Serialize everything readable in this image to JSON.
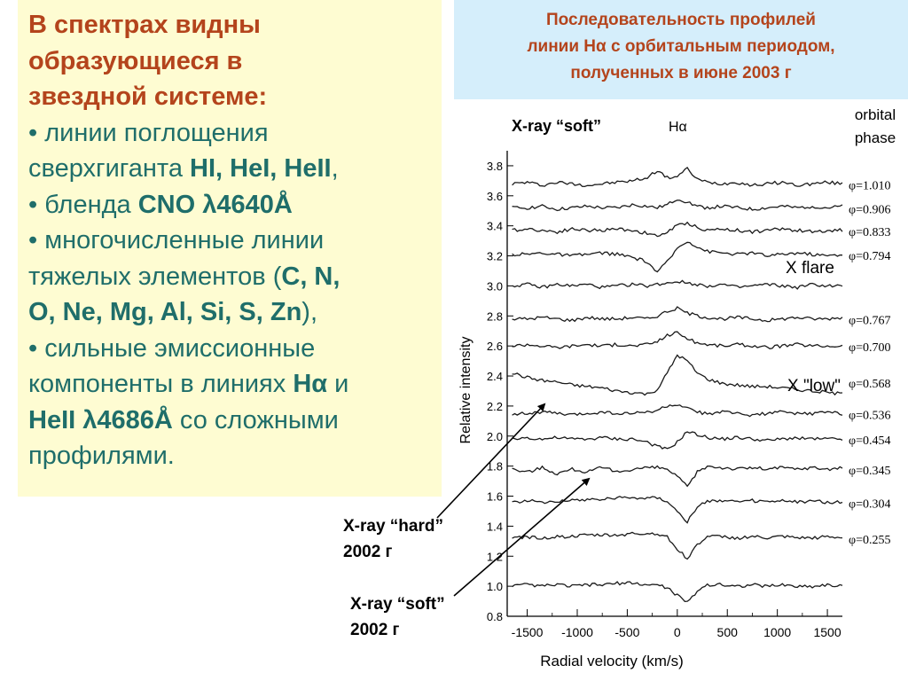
{
  "left_panel": {
    "heading_lines": [
      "В спектрах видны",
      "образующиеся в",
      "звездной системе:"
    ],
    "b1_lines": [
      "• линии поглощения",
      "сверхгиганта "
    ],
    "b1_bold": "HI, HeI, HeII",
    "b1_end": ",",
    "b2_pre": "• бленда ",
    "b2_bold": "CNO λ4640Å",
    "b3_lines": [
      "• многочисленные линии",
      "тяжелых элементов ("
    ],
    "b3_bold1": "C, N,",
    "b3_bold2": "O, Ne, Mg, Al, Si, S, Zn",
    "b3_end": "),",
    "b4_lines": [
      "• сильные эмиссионные",
      "компоненты в линиях "
    ],
    "b4_bold1": "Hα",
    "b4_mid": " и",
    "b4_bold2": "HeII λ4686Å",
    "b4_tail": " со сложными",
    "b4_last": "профилями.",
    "colors": {
      "background": "#fefcd2",
      "heading": "#b4441c",
      "body": "#1f6e6a"
    }
  },
  "title_box": {
    "lines": [
      "Последовательность профилей",
      "линии Hα с орбитальным периодом,",
      "полученных в июне 2003 г"
    ],
    "colors": {
      "background": "#d5eefb",
      "text": "#b4441c"
    }
  },
  "figure": {
    "label_xray_soft_top": "X-ray “soft”",
    "label_halpha": "Hα",
    "orbital_phase_lines": [
      "orbital",
      "phase"
    ],
    "x_flare": "X flare",
    "x_low": "X \"low\"",
    "xray_hard_lines": [
      "X-ray “hard”",
      "2002 г"
    ],
    "xray_soft_lines": [
      "X-ray “soft”",
      "2002 г"
    ]
  },
  "chart_data": {
    "type": "line",
    "title": "",
    "xlabel": "Radial velocity (km/s)",
    "ylabel": "Relative intensity",
    "xlim": [
      -1700,
      1650
    ],
    "ylim": [
      0.8,
      3.9
    ],
    "x_ticks": [
      -1500,
      -1000,
      -500,
      0,
      500,
      1000,
      1500
    ],
    "x_tick_labels": [
      "-1500",
      "-1000",
      "-500",
      "0",
      "500",
      "1000",
      "1500"
    ],
    "y_ticks": [
      0.8,
      1.0,
      1.2,
      1.4,
      1.6,
      1.8,
      2.0,
      2.2,
      2.4,
      2.6,
      2.8,
      3.0,
      3.2,
      3.4,
      3.6,
      3.8
    ],
    "y_tick_labels": [
      "0.8",
      "1.0",
      "1.2",
      "1.4",
      "1.6",
      "1.8",
      "2.0",
      "2.2",
      "2.4",
      "2.6",
      "2.8",
      "3.0",
      "3.2",
      "3.4",
      "3.6",
      "3.8"
    ],
    "x_profile": [
      -1650,
      -1500,
      -1350,
      -1200,
      -1050,
      -900,
      -750,
      -600,
      -450,
      -300,
      -200,
      -100,
      0,
      100,
      200,
      300,
      450,
      600,
      750,
      900,
      1050,
      1200,
      1350,
      1500,
      1650
    ],
    "series": [
      {
        "phase_label": "φ=1.010",
        "offset": 3.68,
        "values": [
          0,
          0.01,
          -0.01,
          0.01,
          0,
          -0.01,
          0,
          0.01,
          0.02,
          0.04,
          0.09,
          0.04,
          0.05,
          0.1,
          0.03,
          0.01,
          0,
          0.01,
          -0.01,
          0,
          0.01,
          -0.01,
          0,
          0.01,
          0
        ]
      },
      {
        "phase_label": "φ=0.906",
        "offset": 3.52,
        "values": [
          0,
          0,
          0.01,
          -0.01,
          0,
          0.01,
          0,
          0,
          0.02,
          0.01,
          0,
          0.02,
          0.06,
          0.04,
          0.01,
          0,
          0.01,
          0,
          -0.01,
          0,
          0.01,
          0,
          0.01,
          0,
          0.01
        ]
      },
      {
        "phase_label": "φ=0.833",
        "offset": 3.37,
        "values": [
          0,
          0.01,
          0,
          -0.01,
          0.01,
          0,
          0,
          0.01,
          0,
          -0.02,
          -0.04,
          -0.01,
          0.03,
          0.05,
          0.02,
          0,
          0.01,
          0,
          -0.01,
          0,
          0.01,
          0,
          -0.01,
          0,
          0
        ]
      },
      {
        "phase_label": "φ=0.794",
        "offset": 3.21,
        "values": [
          0,
          0,
          0.01,
          0,
          -0.01,
          0,
          0.01,
          0,
          -0.02,
          -0.05,
          -0.12,
          -0.05,
          0.04,
          0.09,
          0.05,
          0.02,
          0.01,
          0,
          0.01,
          -0.01,
          0,
          0.01,
          0,
          -0.01,
          0
        ]
      },
      {
        "phase_label": "",
        "offset": 3.0,
        "values": [
          0,
          0.01,
          -0.01,
          0.01,
          0,
          0.01,
          -0.01,
          0,
          0.01,
          0,
          0.01,
          0.02,
          0.03,
          0.02,
          0.01,
          0,
          0.01,
          -0.01,
          0,
          0.01,
          0,
          -0.01,
          0.01,
          0,
          0
        ]
      },
      {
        "phase_label": "φ=0.767",
        "offset": 2.78,
        "values": [
          0,
          0,
          0.01,
          0,
          -0.01,
          0.01,
          0,
          0,
          0.01,
          0,
          0.02,
          0.05,
          0.07,
          0.04,
          0.02,
          0.01,
          0,
          0.01,
          0,
          -0.01,
          0,
          0.01,
          0,
          0,
          0.01
        ]
      },
      {
        "phase_label": "φ=0.700",
        "offset": 2.6,
        "values": [
          0,
          0.01,
          0,
          -0.01,
          0,
          0.01,
          0,
          0.01,
          0,
          0.01,
          0.03,
          0.07,
          0.09,
          0.05,
          0.02,
          0.01,
          0,
          0.01,
          0,
          -0.01,
          0,
          0.01,
          0,
          0,
          0
        ]
      },
      {
        "phase_label": "φ=0.568",
        "offset": 2.36,
        "values": [
          0.06,
          0.03,
          0.01,
          0,
          -0.02,
          -0.03,
          -0.04,
          -0.06,
          -0.07,
          -0.08,
          -0.05,
          0.06,
          0.18,
          0.14,
          0.06,
          0.02,
          -0.01,
          -0.02,
          -0.03,
          -0.03,
          -0.04,
          -0.05,
          -0.06,
          -0.07,
          -0.08
        ]
      },
      {
        "phase_label": "φ=0.536",
        "offset": 2.15,
        "values": [
          0,
          0,
          0.01,
          0,
          -0.01,
          0,
          0.01,
          0,
          0,
          0.01,
          0.02,
          0.05,
          0.06,
          0.03,
          0.01,
          0,
          0.01,
          0,
          -0.01,
          0,
          0.01,
          0,
          0,
          0.01,
          0
        ]
      },
      {
        "phase_label": "φ=0.454",
        "offset": 1.98,
        "values": [
          0,
          0.01,
          0,
          0.01,
          0,
          0,
          0.01,
          0,
          0,
          -0.02,
          -0.05,
          -0.07,
          -0.02,
          0.05,
          0.03,
          0.01,
          0,
          0.01,
          0,
          -0.01,
          0,
          0.01,
          0,
          0,
          0
        ]
      },
      {
        "phase_label": "φ=0.345",
        "offset": 1.78,
        "values": [
          0,
          -0.02,
          0.01,
          -0.03,
          0,
          -0.02,
          0.01,
          -0.02,
          0,
          0.01,
          0.01,
          0,
          -0.05,
          -0.12,
          -0.02,
          0.02,
          0.01,
          0,
          0.01,
          0,
          0.01,
          0,
          0.01,
          0,
          0.01
        ]
      },
      {
        "phase_label": "φ=0.304",
        "offset": 1.56,
        "values": [
          0,
          0.01,
          0,
          0.01,
          0.01,
          0.02,
          0.02,
          0.03,
          0.03,
          0.03,
          0.03,
          0.01,
          -0.06,
          -0.13,
          -0.04,
          0.01,
          0.01,
          0,
          0.01,
          0,
          0.01,
          0,
          0.01,
          0,
          0
        ]
      },
      {
        "phase_label": "φ=0.255",
        "offset": 1.32,
        "values": [
          0,
          0.01,
          0,
          0.01,
          0.01,
          0.02,
          0.02,
          0.02,
          0.03,
          0.03,
          0.03,
          0.01,
          -0.07,
          -0.14,
          -0.04,
          0.01,
          0.01,
          0,
          0.01,
          0,
          0.01,
          0,
          0,
          0.01,
          0
        ]
      },
      {
        "phase_label": "",
        "offset": 1.0,
        "values": [
          0,
          0.01,
          0,
          0.01,
          0,
          0.01,
          0.01,
          0.02,
          0.02,
          0.01,
          0.01,
          -0.01,
          -0.06,
          -0.11,
          -0.03,
          0.01,
          0.01,
          0,
          0.01,
          0,
          0.01,
          0,
          0,
          0.01,
          0
        ]
      }
    ],
    "grid": false,
    "legend": "none",
    "line_color": "#1a1a1a"
  }
}
